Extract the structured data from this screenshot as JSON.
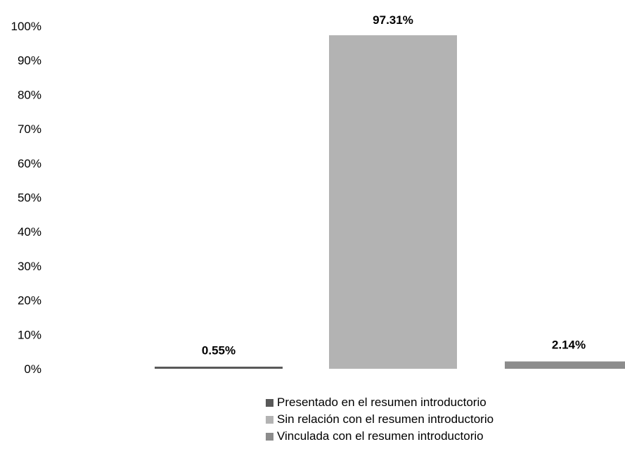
{
  "chart_data": {
    "type": "bar",
    "title": "",
    "xlabel": "",
    "ylabel": "",
    "ylim": [
      0,
      100
    ],
    "y_ticks": [
      "0%",
      "10%",
      "20%",
      "30%",
      "40%",
      "50%",
      "60%",
      "70%",
      "80%",
      "90%",
      "100%"
    ],
    "grid": false,
    "legend_position": "bottom",
    "series": [
      {
        "name": "Presentado en el resumen introductorio",
        "value": 0.55,
        "label": "0.55%",
        "color": "#595959"
      },
      {
        "name": "Sin relación con el resumen introductorio",
        "value": 97.31,
        "label": "97.31%",
        "color": "#b3b3b3"
      },
      {
        "name": "Vinculada con el resumen introductorio",
        "value": 2.14,
        "label": "2.14%",
        "color": "#8c8c8c"
      }
    ]
  }
}
